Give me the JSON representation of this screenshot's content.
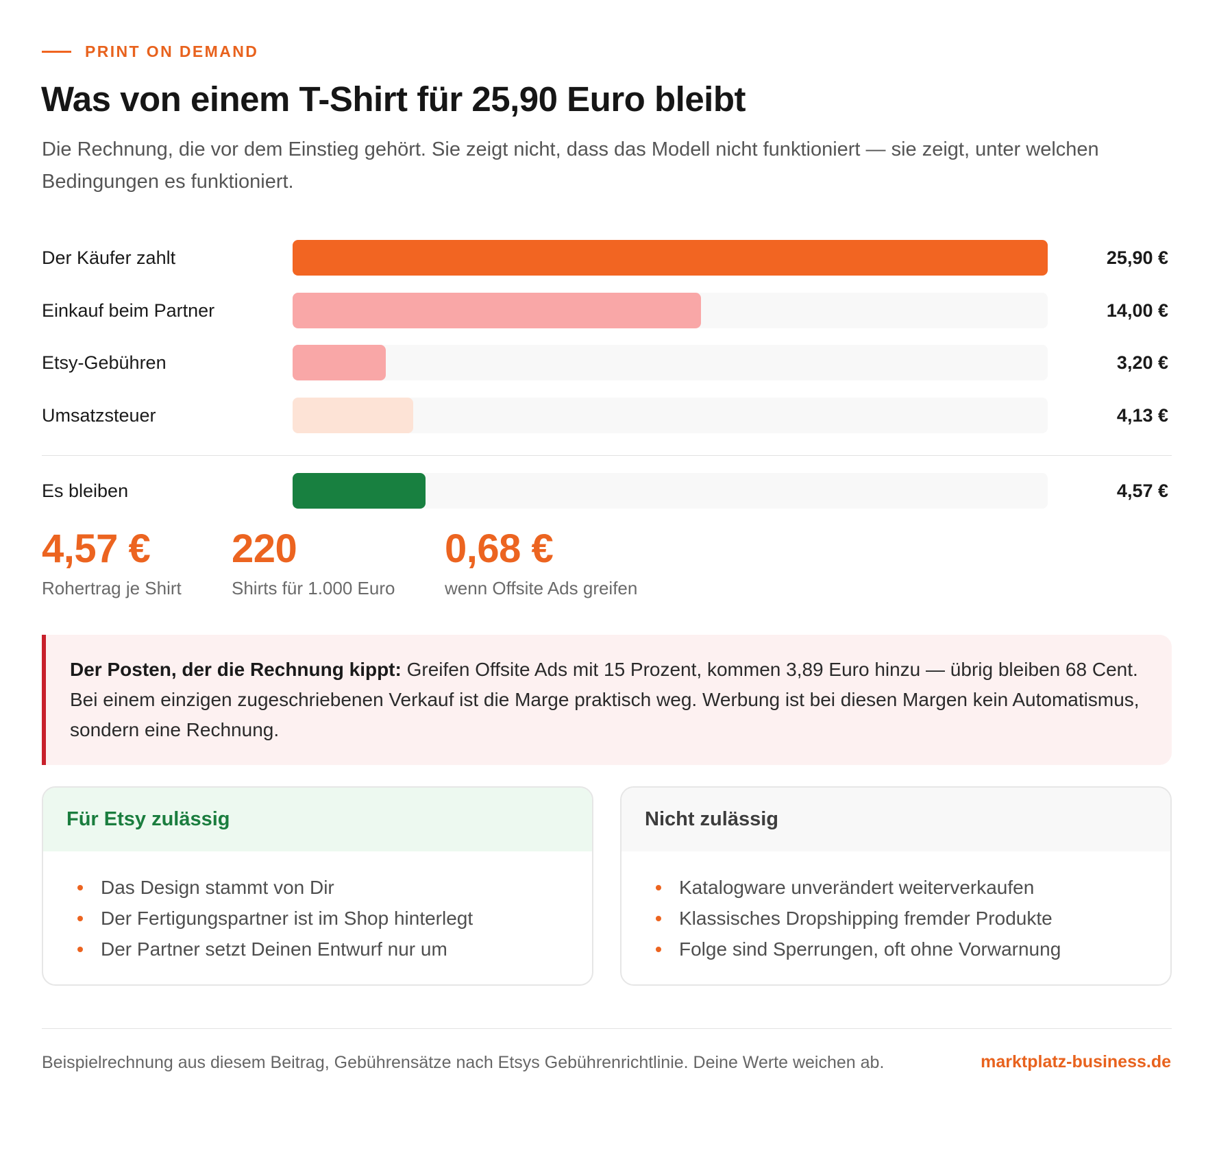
{
  "eyebrow": "PRINT ON DEMAND",
  "title": "Was von einem T-Shirt für 25,90 Euro bleibt",
  "subtitle": "Die Rechnung, die vor dem Einstieg gehört. Sie zeigt nicht, dass das Modell nicht funktioniert — sie zeigt, unter welchen Bedingungen es funktioniert.",
  "colors": {
    "accent": "#f0641f",
    "buyer_bar": "#f26522",
    "cost_bar": "#f9a7a7",
    "tax_bar": "#fde3d6",
    "rest_bar": "#188040",
    "track": "#f8f8f8",
    "warning_border": "#c8202b"
  },
  "chart_data": {
    "type": "bar",
    "orientation": "horizontal",
    "max_value": 25.9,
    "categories": [
      "Der Käufer zahlt",
      "Einkauf beim Partner",
      "Etsy-Gebühren",
      "Umsatzsteuer",
      "Es bleiben"
    ],
    "values": [
      25.9,
      14.0,
      3.2,
      4.13,
      4.57
    ],
    "value_labels": [
      "25,90 €",
      "14,00 €",
      "3,20 €",
      "4,13 €",
      "4,57 €"
    ],
    "colors": [
      "#f26522",
      "#f9a7a7",
      "#f9a7a7",
      "#fde3d6",
      "#188040"
    ]
  },
  "stats": [
    {
      "value": "4,57 €",
      "label": "Rohertrag je Shirt"
    },
    {
      "value": "220",
      "label": "Shirts für 1.000 Euro"
    },
    {
      "value": "0,68 €",
      "label": "wenn Offsite Ads greifen"
    }
  ],
  "warning": {
    "lead": "Der Posten, der die Rechnung kippt:",
    "text": " Greifen Offsite Ads mit 15 Prozent, kommen 3,89 Euro hinzu — übrig bleiben 68 Cent. Bei einem einzigen zugeschriebenen Verkauf ist die Marge praktisch weg. Werbung ist bei diesen Margen kein Automatismus, sondern eine Rechnung."
  },
  "cards": {
    "allowed": {
      "title": "Für Etsy zulässig",
      "items": [
        "Das Design stammt von Dir",
        "Der Fertigungspartner ist im Shop hinterlegt",
        "Der Partner setzt Deinen Entwurf nur um"
      ]
    },
    "not_allowed": {
      "title": "Nicht zulässig",
      "items": [
        "Katalogware unverändert weiterverkaufen",
        "Klassisches Dropshipping fremder Produkte",
        "Folge sind Sperrungen, oft ohne Vorwarnung"
      ]
    }
  },
  "footer": {
    "note": "Beispielrechnung aus diesem Beitrag, Gebührensätze nach Etsys Gebührenrichtlinie. Deine Werte weichen ab.",
    "brand": "marktplatz-business.de"
  }
}
